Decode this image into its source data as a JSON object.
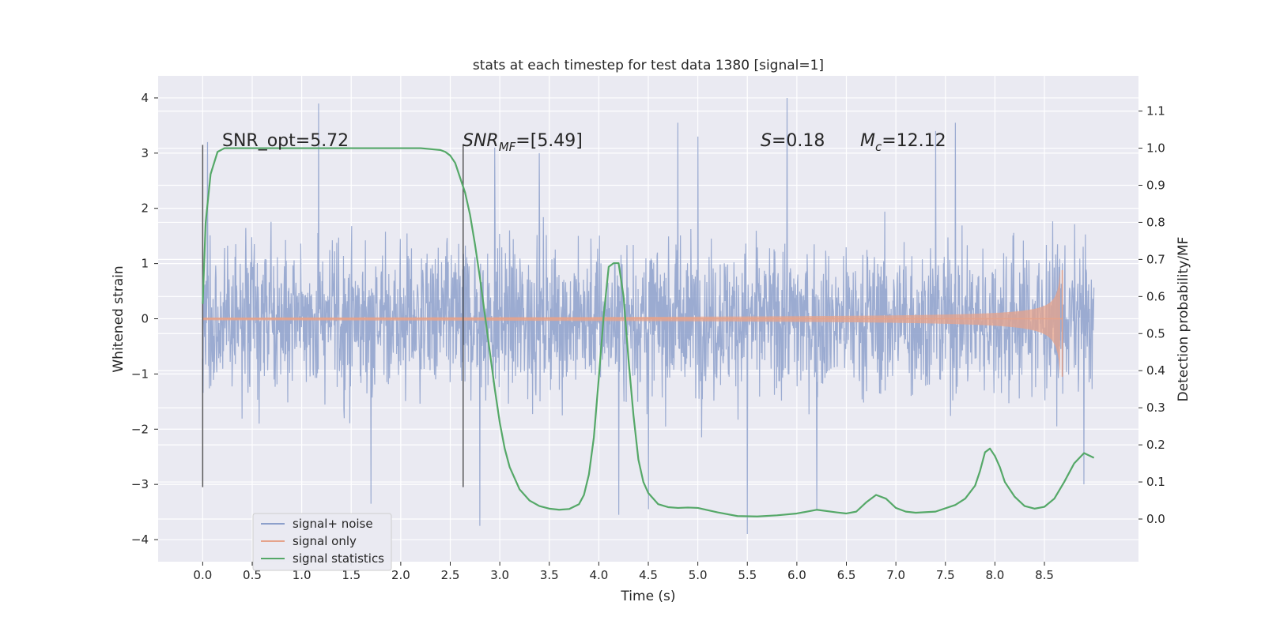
{
  "chart_data": {
    "type": "line",
    "title": "stats at each timestep for test data 1380 [signal=1]",
    "xlabel": "Time (s)",
    "ylabel": "Whitened strain",
    "y2label": "Detection probability/MF",
    "xlim": [
      -0.45,
      9.45
    ],
    "ylim": [
      -4.4,
      4.4
    ],
    "y2lim": [
      -0.115,
      1.195
    ],
    "x_ticks": [
      "0.0",
      "0.5",
      "1.0",
      "1.5",
      "2.0",
      "2.5",
      "3.0",
      "3.5",
      "4.0",
      "4.5",
      "5.0",
      "5.5",
      "6.0",
      "6.5",
      "7.0",
      "7.5",
      "8.0",
      "8.5"
    ],
    "y_ticks": [
      "4",
      "3",
      "2",
      "1",
      "0",
      "−1",
      "−2",
      "−3",
      "−4"
    ],
    "y2_ticks": [
      "1.1",
      "1.0",
      "0.9",
      "0.8",
      "0.7",
      "0.6",
      "0.5",
      "0.4",
      "0.3",
      "0.2",
      "0.1",
      "0.0"
    ],
    "grid": true,
    "legend": {
      "placement": "lower-left",
      "entries": [
        "signal+ noise",
        "signal only",
        "signal statistics"
      ]
    },
    "annotations": [
      {
        "text": "SNR_opt=5.72"
      },
      {
        "label": "SNR",
        "sub": "MF",
        "value": "=[5.49]"
      },
      {
        "label": "S",
        "value": "=0.18"
      },
      {
        "label": "M",
        "sub": "c",
        "value": "=12.12"
      }
    ],
    "vertical_markers": [
      0.0,
      2.63
    ],
    "series": [
      {
        "name": "signal+ noise",
        "color": "#8da0cb",
        "x_range": [
          0.0,
          9.0
        ],
        "peaks": [
          {
            "x": 1.17,
            "y": 3.9
          },
          {
            "x": 5.9,
            "y": 4.0
          },
          {
            "x": 0.05,
            "y": 3.2
          },
          {
            "x": 5.5,
            "y": -3.9
          },
          {
            "x": 2.8,
            "y": -3.75
          },
          {
            "x": 4.2,
            "y": -3.55
          },
          {
            "x": 4.5,
            "y": -3.45
          },
          {
            "x": 1.7,
            "y": -3.35
          },
          {
            "x": 7.6,
            "y": 3.55
          },
          {
            "x": 2.95,
            "y": 3.1
          },
          {
            "x": 4.8,
            "y": 3.55
          },
          {
            "x": 3.4,
            "y": 3.0
          },
          {
            "x": 6.2,
            "y": -3.45
          },
          {
            "x": 8.9,
            "y": -3.0
          },
          {
            "x": 5.0,
            "y": 3.3
          },
          {
            "x": 7.4,
            "y": 3.4
          }
        ]
      },
      {
        "name": "signal only",
        "color": "#e5a38b",
        "x_range": [
          0.0,
          8.68
        ],
        "y_end_max": 0.88,
        "y_end_min": -1.05
      },
      {
        "name": "signal statistics",
        "color": "#55a868",
        "axis": "right",
        "x": [
          0.0,
          0.03,
          0.08,
          0.15,
          0.22,
          0.3,
          0.5,
          1.0,
          1.5,
          2.0,
          2.2,
          2.4,
          2.45,
          2.5,
          2.55,
          2.6,
          2.65,
          2.7,
          2.75,
          2.8,
          2.85,
          2.9,
          2.95,
          3.0,
          3.05,
          3.1,
          3.2,
          3.3,
          3.4,
          3.5,
          3.6,
          3.7,
          3.8,
          3.85,
          3.9,
          3.95,
          4.0,
          4.05,
          4.1,
          4.15,
          4.2,
          4.25,
          4.3,
          4.35,
          4.4,
          4.45,
          4.5,
          4.6,
          4.7,
          4.8,
          4.9,
          5.0,
          5.2,
          5.4,
          5.6,
          5.8,
          6.0,
          6.2,
          6.4,
          6.5,
          6.6,
          6.7,
          6.8,
          6.9,
          7.0,
          7.1,
          7.2,
          7.4,
          7.6,
          7.7,
          7.8,
          7.85,
          7.9,
          7.95,
          8.0,
          8.05,
          8.1,
          8.2,
          8.3,
          8.4,
          8.5,
          8.6,
          8.7,
          8.8,
          8.9,
          9.0
        ],
        "y": [
          0.58,
          0.8,
          0.93,
          0.99,
          1.0,
          1.0,
          1.0,
          1.0,
          1.0,
          1.0,
          1.0,
          0.995,
          0.99,
          0.98,
          0.96,
          0.92,
          0.88,
          0.82,
          0.74,
          0.65,
          0.55,
          0.45,
          0.35,
          0.26,
          0.19,
          0.14,
          0.08,
          0.05,
          0.035,
          0.028,
          0.025,
          0.027,
          0.04,
          0.065,
          0.12,
          0.22,
          0.38,
          0.55,
          0.68,
          0.69,
          0.69,
          0.6,
          0.43,
          0.28,
          0.16,
          0.1,
          0.07,
          0.04,
          0.032,
          0.03,
          0.031,
          0.03,
          0.018,
          0.008,
          0.007,
          0.01,
          0.015,
          0.025,
          0.018,
          0.015,
          0.02,
          0.045,
          0.065,
          0.055,
          0.03,
          0.02,
          0.017,
          0.02,
          0.038,
          0.055,
          0.09,
          0.13,
          0.18,
          0.19,
          0.17,
          0.14,
          0.1,
          0.06,
          0.035,
          0.028,
          0.033,
          0.055,
          0.1,
          0.15,
          0.178,
          0.165
        ]
      }
    ]
  }
}
